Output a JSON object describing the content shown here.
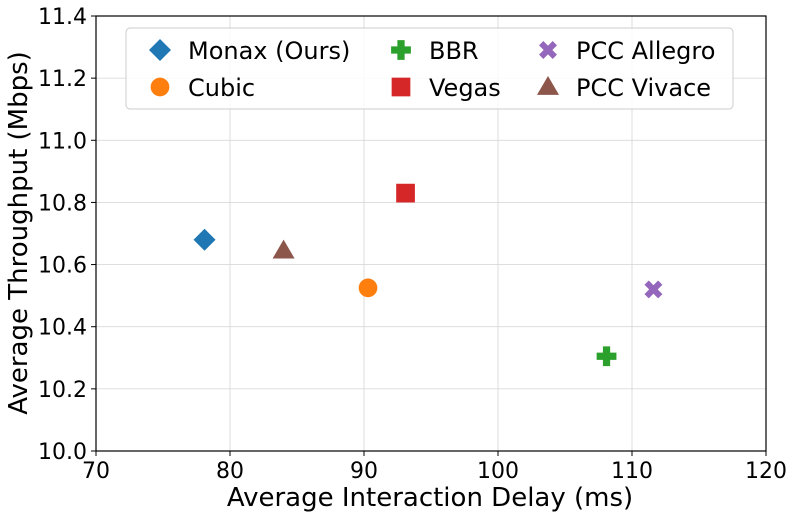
{
  "chart_data": {
    "type": "scatter",
    "xlabel": "Average Interaction Delay (ms)",
    "ylabel": "Average Throughput (Mbps)",
    "xlim": [
      70,
      120
    ],
    "ylim": [
      10.0,
      11.4
    ],
    "xticks": [
      70,
      80,
      90,
      100,
      110,
      120
    ],
    "yticks": [
      10.0,
      10.2,
      10.4,
      10.6,
      10.8,
      11.0,
      11.2,
      11.4
    ],
    "xtick_labels": [
      "70",
      "80",
      "90",
      "100",
      "110",
      "120"
    ],
    "ytick_labels": [
      "10.0",
      "10.2",
      "10.4",
      "10.6",
      "10.8",
      "11.0",
      "11.2",
      "11.4"
    ],
    "grid": true,
    "legend_position": "top",
    "legend_columns": 3,
    "series": [
      {
        "name": "Monax (Ours)",
        "marker": "diamond",
        "color": "#1f77b4",
        "x": 78.1,
        "y": 10.68
      },
      {
        "name": "Cubic",
        "marker": "circle",
        "color": "#ff7f0e",
        "x": 90.3,
        "y": 10.525
      },
      {
        "name": "BBR",
        "marker": "plus",
        "color": "#2ca02c",
        "x": 108.1,
        "y": 10.305
      },
      {
        "name": "Vegas",
        "marker": "square",
        "color": "#d62728",
        "x": 93.1,
        "y": 10.83
      },
      {
        "name": "PCC Allegro",
        "marker": "x",
        "color": "#9467bd",
        "x": 111.6,
        "y": 10.52
      },
      {
        "name": "PCC Vivace",
        "marker": "triangle",
        "color": "#8c564b",
        "x": 84.0,
        "y": 10.645
      }
    ]
  }
}
